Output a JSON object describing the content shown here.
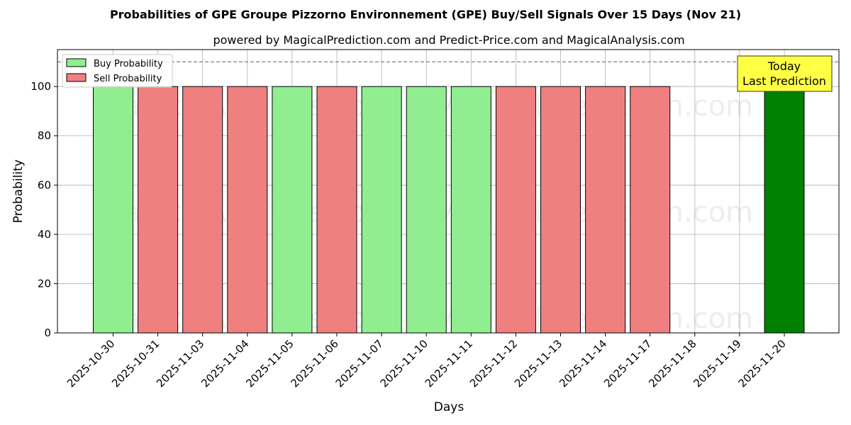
{
  "chart_data": {
    "type": "bar",
    "title": "Probabilities of GPE Groupe Pizzorno Environnement (GPE) Buy/Sell Signals Over 15 Days (Nov 21)",
    "subtitle": "powered by MagicalPrediction.com and Predict-Price.com and MagicalAnalysis.com",
    "xlabel": "Days",
    "ylabel": "Probability",
    "ylim": [
      0,
      115
    ],
    "yticks": [
      0,
      20,
      40,
      60,
      80,
      100
    ],
    "grid": true,
    "legend_position": "top-left",
    "categories": [
      "2025-10-30",
      "2025-10-31",
      "2025-11-03",
      "2025-11-04",
      "2025-11-05",
      "2025-11-06",
      "2025-11-07",
      "2025-11-10",
      "2025-11-11",
      "2025-11-12",
      "2025-11-13",
      "2025-11-14",
      "2025-11-17",
      "2025-11-18",
      "2025-11-19",
      "2025-11-20"
    ],
    "series": [
      {
        "name": "Buy Probability",
        "color": "#90ee90",
        "values": [
          100,
          null,
          null,
          null,
          100,
          null,
          100,
          100,
          100,
          null,
          null,
          null,
          null,
          null,
          null,
          null
        ]
      },
      {
        "name": "Sell Probability",
        "color": "#f08080",
        "values": [
          null,
          100,
          100,
          100,
          null,
          100,
          null,
          null,
          null,
          100,
          100,
          100,
          100,
          null,
          null,
          null
        ]
      }
    ],
    "today_bar": {
      "category": "2025-11-20",
      "value": 100,
      "color": "#008000"
    },
    "reference_line": {
      "y": 110,
      "style": "dashed",
      "color": "#808080"
    },
    "annotation": {
      "lines": [
        "Today",
        "Last Prediction"
      ],
      "color": "#ffff44",
      "position": "top-right"
    },
    "watermarks": [
      "MagicalAnalysis.com",
      "MagicalPrediction.com"
    ]
  }
}
